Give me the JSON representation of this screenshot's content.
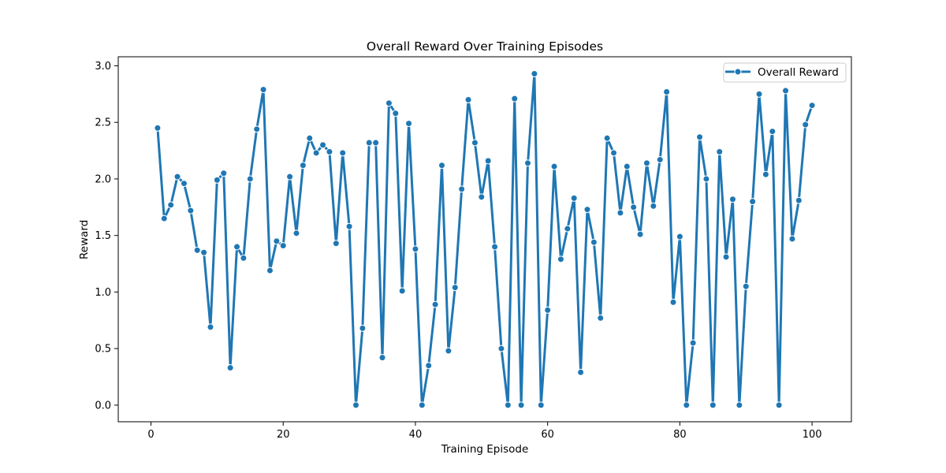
{
  "chart_data": {
    "type": "line",
    "title": "Overall Reward Over Training Episodes",
    "xlabel": "Training Episode",
    "ylabel": "Reward",
    "xlim": [
      -4.95,
      105.95
    ],
    "ylim": [
      -0.147,
      3.08
    ],
    "x_ticks": [
      0,
      20,
      40,
      60,
      80,
      100
    ],
    "x_tick_labels": [
      "0",
      "20",
      "40",
      "60",
      "80",
      "100"
    ],
    "y_ticks": [
      0.0,
      0.5,
      1.0,
      1.5,
      2.0,
      2.5,
      3.0
    ],
    "y_tick_labels": [
      "0.0",
      "0.5",
      "1.0",
      "1.5",
      "2.0",
      "2.5",
      "3.0"
    ],
    "grid": false,
    "legend_position": "upper right",
    "series": [
      {
        "name": "Overall Reward",
        "color": "#1f77b4",
        "marker": "circle",
        "x": [
          1,
          2,
          3,
          4,
          5,
          6,
          7,
          8,
          9,
          10,
          11,
          12,
          13,
          14,
          15,
          16,
          17,
          18,
          19,
          20,
          21,
          22,
          23,
          24,
          25,
          26,
          27,
          28,
          29,
          30,
          31,
          32,
          33,
          34,
          35,
          36,
          37,
          38,
          39,
          40,
          41,
          42,
          43,
          44,
          45,
          46,
          47,
          48,
          49,
          50,
          51,
          52,
          53,
          54,
          55,
          56,
          57,
          58,
          59,
          60,
          61,
          62,
          63,
          64,
          65,
          66,
          67,
          68,
          69,
          70,
          71,
          72,
          73,
          74,
          75,
          76,
          77,
          78,
          79,
          80,
          81,
          82,
          83,
          84,
          85,
          86,
          87,
          88,
          89,
          90,
          91,
          92,
          93,
          94,
          95,
          96,
          97,
          98,
          99,
          100
        ],
        "values": [
          2.45,
          1.65,
          1.77,
          2.02,
          1.96,
          1.72,
          1.37,
          1.35,
          0.69,
          1.99,
          2.05,
          0.33,
          1.4,
          1.3,
          2.0,
          2.44,
          2.79,
          1.19,
          1.45,
          1.41,
          2.02,
          1.52,
          2.12,
          2.36,
          2.23,
          2.3,
          2.24,
          1.43,
          2.23,
          1.58,
          0.0,
          0.68,
          2.32,
          2.32,
          0.42,
          2.67,
          2.58,
          1.01,
          2.49,
          1.38,
          0.0,
          0.35,
          0.89,
          2.12,
          0.48,
          1.04,
          1.91,
          2.7,
          2.32,
          1.84,
          2.16,
          1.4,
          0.5,
          0.0,
          2.71,
          0.0,
          2.14,
          2.93,
          0.0,
          0.84,
          2.11,
          1.29,
          1.56,
          1.83,
          0.29,
          1.73,
          1.44,
          0.77,
          2.36,
          2.23,
          1.7,
          2.11,
          1.75,
          1.51,
          2.14,
          1.76,
          2.17,
          2.77,
          0.91,
          1.49,
          0.0,
          0.55,
          2.37,
          2.0,
          0.0,
          2.24,
          1.31,
          1.82,
          0.0,
          1.05,
          1.8,
          2.75,
          2.04,
          2.42,
          0.0,
          2.78,
          1.47,
          1.81,
          2.48,
          2.65
        ]
      }
    ]
  }
}
